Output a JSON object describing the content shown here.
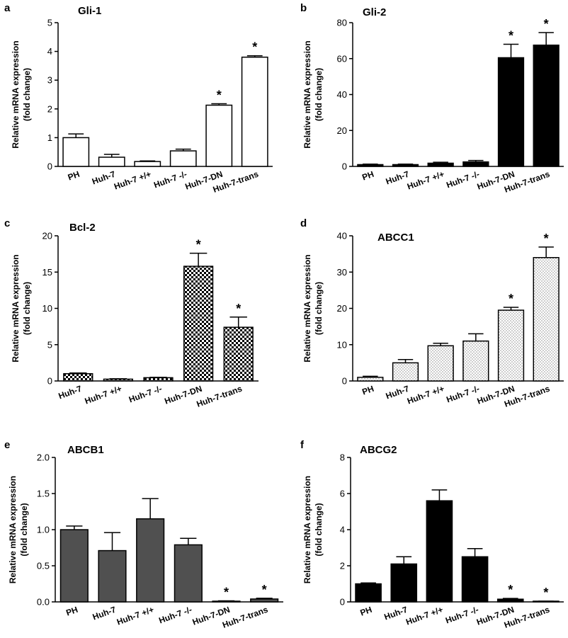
{
  "chart_data": [
    {
      "panel": "a",
      "type": "bar",
      "title": "Gli-1",
      "ylabel": [
        "Relative mRNA expression",
        "(fold change)"
      ],
      "categories": [
        "PH",
        "Huh-7",
        "Huh-7 +/+",
        "Huh-7 -/-",
        "Huh-7-DN",
        "Huh-7-trans"
      ],
      "values": [
        1.0,
        0.32,
        0.17,
        0.54,
        2.13,
        3.8
      ],
      "errors": [
        0.13,
        0.1,
        0.02,
        0.06,
        0.05,
        0.05
      ],
      "significant": [
        false,
        false,
        false,
        false,
        true,
        true
      ],
      "ylim": [
        0,
        5
      ],
      "yticks": [
        0,
        1,
        2,
        3,
        4,
        5
      ],
      "fill": "white",
      "grid": false
    },
    {
      "panel": "b",
      "type": "bar",
      "title": "Gli-2",
      "ylabel": [
        "Relative mRNA expression",
        "(fold change)"
      ],
      "categories": [
        "PH",
        "Huh-7",
        "Huh-7 +/+",
        "Huh-7 -/-",
        "Huh-7-DN",
        "Huh-7-trans"
      ],
      "values": [
        1.0,
        1.0,
        1.8,
        2.5,
        60.5,
        67.5
      ],
      "errors": [
        0.3,
        0.3,
        0.5,
        0.8,
        7.5,
        7.0
      ],
      "significant": [
        false,
        false,
        false,
        false,
        true,
        true
      ],
      "ylim": [
        0,
        80
      ],
      "yticks": [
        0,
        20,
        40,
        60,
        80
      ],
      "fill": "black",
      "grid": false
    },
    {
      "panel": "c",
      "type": "bar",
      "title": "Bcl-2",
      "ylabel": [
        "Relative mRNA expression",
        "(fold change)"
      ],
      "categories": [
        "Huh-7",
        "Huh-7 +/+",
        "Huh-7 -/-",
        "Huh-7-DN",
        "Huh-7-trans"
      ],
      "values": [
        1.0,
        0.25,
        0.45,
        15.8,
        7.4
      ],
      "errors": [
        0.1,
        0.05,
        0.05,
        1.8,
        1.4
      ],
      "significant": [
        false,
        false,
        false,
        true,
        true
      ],
      "ylim": [
        0,
        20
      ],
      "yticks": [
        0,
        5,
        10,
        15,
        20
      ],
      "fill": "checker",
      "grid": false
    },
    {
      "panel": "d",
      "type": "bar",
      "title": "ABCC1",
      "ylabel": [
        "Relative mRNA expression",
        "(fold change)"
      ],
      "categories": [
        "PH",
        "Huh-7",
        "Huh-7 +/+",
        "Huh-7 -/-",
        "Huh-7-DN",
        "Huh-7-trans"
      ],
      "values": [
        1.0,
        5.0,
        9.7,
        11.0,
        19.5,
        34.0
      ],
      "errors": [
        0.3,
        0.9,
        0.7,
        2.0,
        0.8,
        2.9
      ],
      "significant": [
        false,
        false,
        false,
        false,
        true,
        true
      ],
      "ylim": [
        0,
        40
      ],
      "yticks": [
        0,
        10,
        20,
        30,
        40
      ],
      "fill": "dots",
      "grid": false
    },
    {
      "panel": "e",
      "type": "bar",
      "title": "ABCB1",
      "ylabel": [
        "Relative mRNA expression",
        "(fold change)"
      ],
      "categories": [
        "PH",
        "Huh-7",
        "Huh-7 +/+",
        "Huh-7 -/-",
        "Huh-7-DN",
        "Huh-7-trans"
      ],
      "values": [
        1.0,
        0.71,
        1.15,
        0.79,
        0.01,
        0.04
      ],
      "errors": [
        0.05,
        0.25,
        0.28,
        0.09,
        0.005,
        0.01
      ],
      "significant": [
        false,
        false,
        false,
        false,
        true,
        true
      ],
      "ylim": [
        0,
        2.0
      ],
      "yticks": [
        "0.0",
        "0.5",
        "1.0",
        "1.5",
        "2.0"
      ],
      "fill": "gray",
      "grid": false
    },
    {
      "panel": "f",
      "type": "bar",
      "title": "ABCG2",
      "ylabel": [
        "Relative mRNA expression",
        "(fold change)"
      ],
      "categories": [
        "PH",
        "Huh-7",
        "Huh-7 +/+",
        "Huh-7 -/-",
        "Huh-7-DN",
        "Huh-7-trans"
      ],
      "values": [
        1.0,
        2.1,
        5.6,
        2.5,
        0.15,
        0.03
      ],
      "errors": [
        0.05,
        0.4,
        0.6,
        0.45,
        0.04,
        0.01
      ],
      "significant": [
        false,
        false,
        false,
        false,
        true,
        true
      ],
      "ylim": [
        0,
        8
      ],
      "yticks": [
        0,
        2,
        4,
        6,
        8
      ],
      "fill": "black",
      "grid": false
    }
  ],
  "significance_mark": "*"
}
